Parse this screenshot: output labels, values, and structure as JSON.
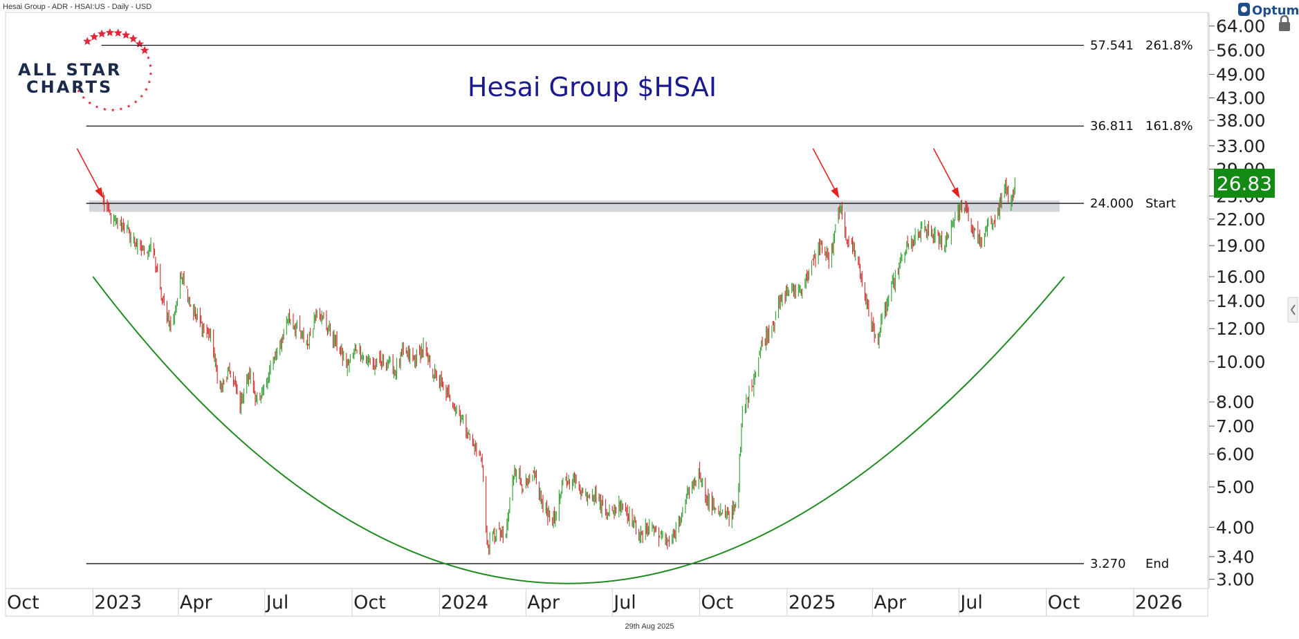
{
  "header": {
    "instrument": "Hesai Group - ADR - HSAI:US - Daily - USD",
    "date": "29th Aug 2025",
    "vendor": "Optuma"
  },
  "logo": {
    "line1": "ALL STAR",
    "line2": "CHARTS"
  },
  "colors": {
    "up": "#2e9e2e",
    "down": "#d62828",
    "arc": "#1f8a1f",
    "zone": "#d3d7dc",
    "title": "#1a1a8c",
    "price_tag": "#138a13",
    "arrow": "#e62020",
    "stars": "#e0283c"
  },
  "chart_data": {
    "type": "candlestick",
    "title": "Hesai Group $HSAI",
    "y_scale": "log",
    "ylim": [
      2.85,
      69
    ],
    "y_ticks": [
      "3.00",
      "3.40",
      "4.00",
      "5.00",
      "6.00",
      "7.00",
      "8.00",
      "10.00",
      "12.00",
      "14.00",
      "16.00",
      "19.00",
      "22.00",
      "25.00",
      "29.00",
      "33.00",
      "38.00",
      "43.00",
      "49.00",
      "56.00",
      "64.00"
    ],
    "x_ticks": [
      "Oct",
      "2023",
      "Apr",
      "Jul",
      "Oct",
      "2024",
      "Apr",
      "Jul",
      "Oct",
      "2025",
      "Apr",
      "Jul",
      "Oct",
      "2026"
    ],
    "xlim": [
      "2022-10-01",
      "2026-03-20"
    ],
    "last_price": "26.83",
    "levels": [
      {
        "value": 57.541,
        "label": "57.541",
        "tag": "261.8%",
        "from": "2023-01-10"
      },
      {
        "value": 36.811,
        "label": "36.811",
        "tag": "161.8%",
        "from": "2022-12-25"
      },
      {
        "value": 24.0,
        "label": "24.000",
        "tag": "Start",
        "from": "2022-12-25"
      },
      {
        "value": 3.27,
        "label": "3.270",
        "tag": "End",
        "from": "2022-12-25"
      }
    ],
    "resistance_zone": {
      "low": 22.9,
      "high": 24.4,
      "from": "2022-12-28",
      "to": "2025-10-15"
    },
    "arrows": [
      {
        "date": "2023-01-12",
        "price": 24.3
      },
      {
        "date": "2025-02-25",
        "price": 24.3
      },
      {
        "date": "2025-07-02",
        "price": 24.3
      }
    ],
    "arc": {
      "start": [
        "2023-01-01",
        16.0
      ],
      "bottom": [
        "2024-05-15",
        2.93
      ],
      "end": [
        "2025-10-20",
        16.0
      ]
    },
    "path": [
      [
        "2023-01-12",
        24.2
      ],
      [
        "2023-01-20",
        22.0
      ],
      [
        "2023-02-05",
        21.0
      ],
      [
        "2023-02-20",
        18.5
      ],
      [
        "2023-03-05",
        18.8
      ],
      [
        "2023-03-15",
        14.0
      ],
      [
        "2023-03-25",
        12.0
      ],
      [
        "2023-04-05",
        16.5
      ],
      [
        "2023-04-15",
        13.5
      ],
      [
        "2023-04-25",
        12.2
      ],
      [
        "2023-05-05",
        11.5
      ],
      [
        "2023-05-15",
        8.5
      ],
      [
        "2023-05-25",
        9.5
      ],
      [
        "2023-06-05",
        8.0
      ],
      [
        "2023-06-15",
        9.3
      ],
      [
        "2023-06-25",
        7.8
      ],
      [
        "2023-07-05",
        9.5
      ],
      [
        "2023-07-15",
        10.5
      ],
      [
        "2023-07-25",
        12.8
      ],
      [
        "2023-08-05",
        12.0
      ],
      [
        "2023-08-15",
        11.0
      ],
      [
        "2023-08-25",
        13.5
      ],
      [
        "2023-09-05",
        12.0
      ],
      [
        "2023-09-15",
        11.0
      ],
      [
        "2023-09-25",
        9.8
      ],
      [
        "2023-10-05",
        10.8
      ],
      [
        "2023-10-15",
        10.2
      ],
      [
        "2023-10-25",
        9.7
      ],
      [
        "2023-11-05",
        10.1
      ],
      [
        "2023-11-15",
        9.6
      ],
      [
        "2023-11-25",
        10.6
      ],
      [
        "2023-12-05",
        10.0
      ],
      [
        "2023-12-15",
        10.8
      ],
      [
        "2023-12-25",
        9.5
      ],
      [
        "2024-01-05",
        8.6
      ],
      [
        "2024-01-15",
        8.0
      ],
      [
        "2024-01-25",
        7.3
      ],
      [
        "2024-02-05",
        6.3
      ],
      [
        "2024-02-15",
        5.8
      ],
      [
        "2024-02-20",
        3.6
      ],
      [
        "2024-03-01",
        3.9
      ],
      [
        "2024-03-10",
        3.7
      ],
      [
        "2024-03-20",
        5.6
      ],
      [
        "2024-03-30",
        5.0
      ],
      [
        "2024-04-10",
        5.3
      ],
      [
        "2024-04-20",
        4.4
      ],
      [
        "2024-05-01",
        4.2
      ],
      [
        "2024-05-10",
        5.0
      ],
      [
        "2024-05-20",
        5.3
      ],
      [
        "2024-06-01",
        4.8
      ],
      [
        "2024-06-10",
        4.9
      ],
      [
        "2024-06-20",
        4.5
      ],
      [
        "2024-07-01",
        4.3
      ],
      [
        "2024-07-10",
        4.6
      ],
      [
        "2024-07-20",
        4.2
      ],
      [
        "2024-08-01",
        3.8
      ],
      [
        "2024-08-10",
        4.1
      ],
      [
        "2024-08-20",
        3.8
      ],
      [
        "2024-09-01",
        3.7
      ],
      [
        "2024-09-10",
        4.1
      ],
      [
        "2024-09-20",
        4.9
      ],
      [
        "2024-10-01",
        5.4
      ],
      [
        "2024-10-10",
        4.6
      ],
      [
        "2024-10-20",
        4.4
      ],
      [
        "2024-11-01",
        4.2
      ],
      [
        "2024-11-10",
        4.7
      ],
      [
        "2024-11-15",
        7.5
      ],
      [
        "2024-11-25",
        8.8
      ],
      [
        "2024-12-05",
        11.0
      ],
      [
        "2024-12-15",
        12.0
      ],
      [
        "2024-12-25",
        14.0
      ],
      [
        "2025-01-05",
        15.0
      ],
      [
        "2025-01-15",
        14.8
      ],
      [
        "2025-01-25",
        16.5
      ],
      [
        "2025-02-05",
        19.0
      ],
      [
        "2025-02-15",
        17.5
      ],
      [
        "2025-02-25",
        23.5
      ],
      [
        "2025-03-05",
        20.0
      ],
      [
        "2025-03-15",
        18.0
      ],
      [
        "2025-03-25",
        14.0
      ],
      [
        "2025-04-05",
        11.0
      ],
      [
        "2025-04-15",
        13.5
      ],
      [
        "2025-04-25",
        16.0
      ],
      [
        "2025-05-05",
        18.5
      ],
      [
        "2025-05-15",
        19.5
      ],
      [
        "2025-05-25",
        21.0
      ],
      [
        "2025-06-05",
        20.0
      ],
      [
        "2025-06-15",
        19.0
      ],
      [
        "2025-06-25",
        22.0
      ],
      [
        "2025-07-05",
        23.8
      ],
      [
        "2025-07-15",
        21.0
      ],
      [
        "2025-07-25",
        19.0
      ],
      [
        "2025-08-01",
        21.5
      ],
      [
        "2025-08-10",
        22.5
      ],
      [
        "2025-08-18",
        26.5
      ],
      [
        "2025-08-24",
        24.0
      ],
      [
        "2025-08-29",
        26.83
      ]
    ]
  }
}
